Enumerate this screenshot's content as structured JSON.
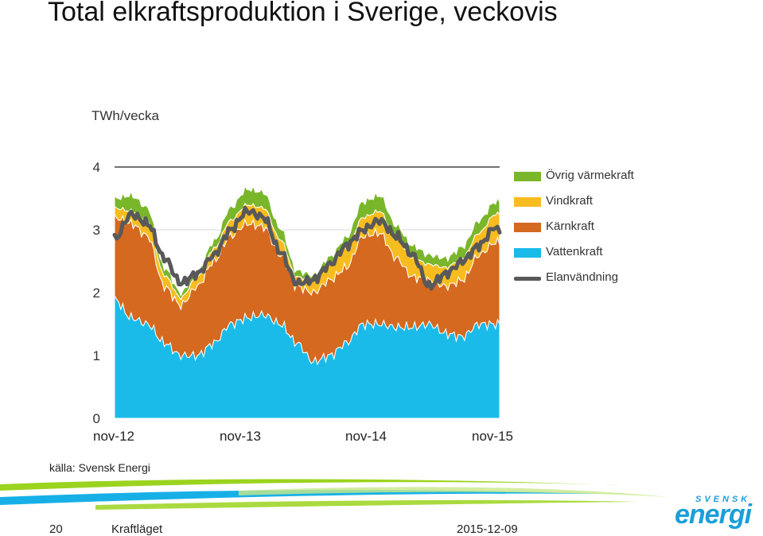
{
  "title": "Total elkraftsproduktion i Sverige, veckovis",
  "unit_label": "TWh/vecka",
  "source": "källa: Svensk Energi",
  "footer": {
    "page_number": "20",
    "section": "Kraftläget",
    "date": "2015-12-09"
  },
  "logo": {
    "top": "SVENSK",
    "main": "energi"
  },
  "colors": {
    "vatten": "#1bbbe9",
    "karn": "#d4691f",
    "vind": "#f7bc1f",
    "ovrig": "#7ab62a",
    "elanvandning": "#595959"
  },
  "chart_data": {
    "type": "area",
    "title": "Total elkraftsproduktion i Sverige, veckovis",
    "ylabel": "TWh/vecka",
    "ylim": [
      0,
      4
    ],
    "yticks": [
      "0",
      "1",
      "2",
      "3",
      "4"
    ],
    "xticks": [
      "nov-12",
      "nov-13",
      "nov-14",
      "nov-15"
    ],
    "anchors": [
      0,
      8,
      16,
      24,
      32,
      40,
      48,
      56,
      64,
      72,
      80,
      88,
      96,
      104,
      112,
      120,
      128,
      136,
      144,
      152,
      160,
      168,
      176,
      184,
      186
    ],
    "series": [
      {
        "name": "Vattenkraft",
        "values": [
          1.9,
          1.6,
          1.5,
          1.2,
          1.0,
          1.0,
          1.2,
          1.5,
          1.6,
          1.65,
          1.5,
          1.2,
          0.9,
          1.0,
          1.2,
          1.5,
          1.5,
          1.45,
          1.45,
          1.5,
          1.35,
          1.3,
          1.5,
          1.5,
          1.5
        ]
      },
      {
        "name": "Kärnkraft",
        "values": [
          1.3,
          1.5,
          1.4,
          0.9,
          0.8,
          1.1,
          1.3,
          1.4,
          1.5,
          1.4,
          1.1,
          0.9,
          1.1,
          1.2,
          1.2,
          1.4,
          1.45,
          1.1,
          0.8,
          0.7,
          0.75,
          0.9,
          1.1,
          1.3,
          1.3
        ]
      },
      {
        "name": "Vindkraft",
        "values": [
          0.15,
          0.2,
          0.25,
          0.18,
          0.12,
          0.15,
          0.2,
          0.25,
          0.3,
          0.3,
          0.25,
          0.15,
          0.2,
          0.25,
          0.3,
          0.3,
          0.35,
          0.3,
          0.3,
          0.25,
          0.3,
          0.35,
          0.35,
          0.45,
          0.45
        ]
      },
      {
        "name": "Övrig värmekraft",
        "values": [
          0.15,
          0.25,
          0.2,
          0.12,
          0.08,
          0.08,
          0.12,
          0.2,
          0.25,
          0.25,
          0.18,
          0.1,
          0.08,
          0.12,
          0.18,
          0.25,
          0.25,
          0.22,
          0.2,
          0.15,
          0.15,
          0.18,
          0.2,
          0.2,
          0.2
        ]
      },
      {
        "name": "Elanvändning",
        "type": "line",
        "values": [
          2.85,
          3.25,
          3.1,
          2.55,
          2.15,
          2.3,
          2.6,
          3.0,
          3.3,
          3.2,
          2.65,
          2.15,
          2.2,
          2.45,
          2.75,
          3.0,
          3.15,
          2.9,
          2.6,
          2.1,
          2.3,
          2.5,
          2.75,
          3.05,
          2.95
        ]
      }
    ]
  },
  "legend": [
    {
      "label": "Övrig värmekraft",
      "color_key": "ovrig"
    },
    {
      "label": "Vindkraft",
      "color_key": "vind"
    },
    {
      "label": "Kärnkraft",
      "color_key": "karn"
    },
    {
      "label": "Vattenkraft",
      "color_key": "vatten"
    },
    {
      "label": "Elanvändning",
      "color_key": "elanvandning",
      "line": true
    }
  ]
}
